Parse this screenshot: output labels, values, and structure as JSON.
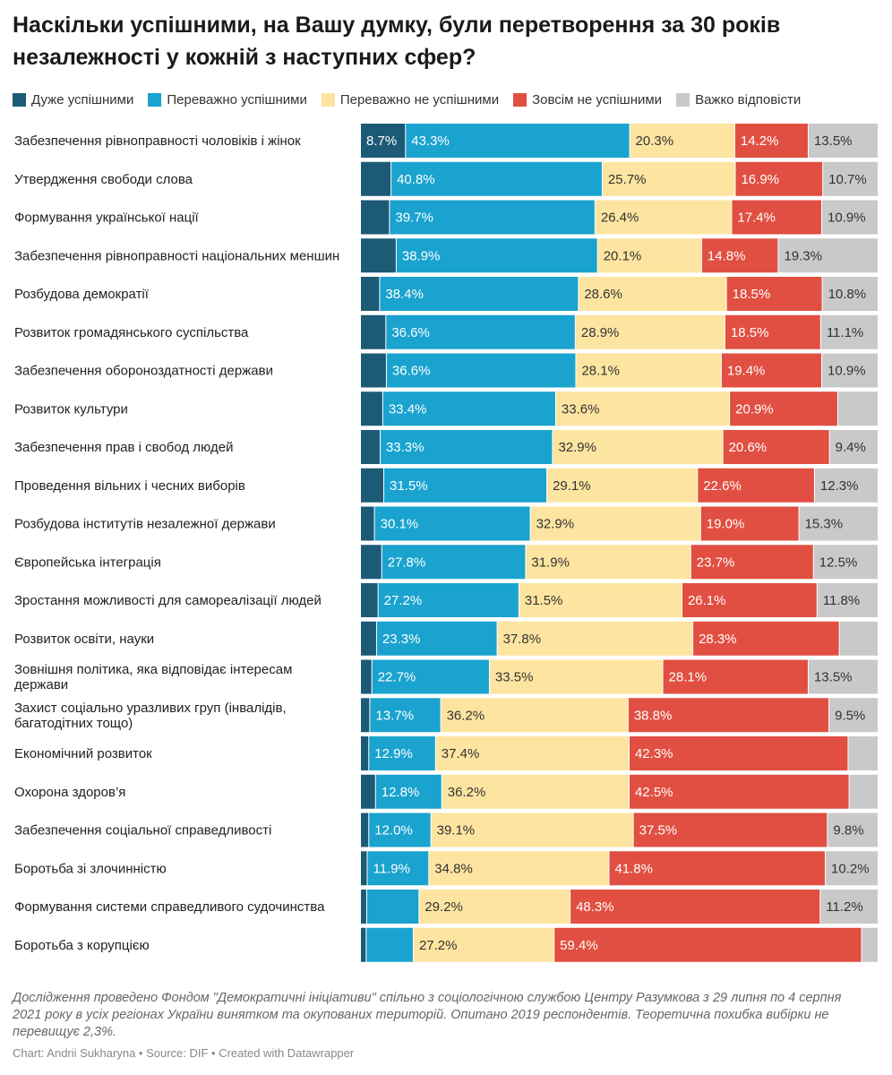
{
  "chart_data": {
    "type": "bar",
    "stacked": true,
    "orientation": "horizontal",
    "title": "Наскільки успішними, на Вашу думку, були перетворення за 30 років  незалежності у кожній з наступних сфер?",
    "xlim": [
      0,
      100
    ],
    "legend_position": "top",
    "series": [
      {
        "name": "Дуже успішними",
        "color": "#1d5a76"
      },
      {
        "name": "Переважно успішними",
        "color": "#1aa3cf"
      },
      {
        "name": "Переважно не успішними",
        "color": "#fde4a0"
      },
      {
        "name": "Зовсім не успішними",
        "color": "#e14f42"
      },
      {
        "name": "Важко відповісти",
        "color": "#c9c9c9"
      }
    ],
    "rows": [
      {
        "label": "Забезпечення рівноправності чоловіків і жінок",
        "values": [
          8.7,
          43.3,
          20.3,
          14.2,
          13.5
        ],
        "labels": [
          "8.7%",
          "43.3%",
          "20.3%",
          "14.2%",
          "13.5%"
        ]
      },
      {
        "label": "Утвердження свободи слова",
        "values": [
          5.9,
          40.8,
          25.7,
          16.9,
          10.7
        ],
        "labels": [
          "",
          "40.8%",
          "25.7%",
          "16.9%",
          "10.7%"
        ]
      },
      {
        "label": "Формування української нації",
        "values": [
          5.6,
          39.7,
          26.4,
          17.4,
          10.9
        ],
        "labels": [
          "",
          "39.7%",
          "26.4%",
          "17.4%",
          "10.9%"
        ]
      },
      {
        "label": "Забезпечення рівноправності національних меншин",
        "values": [
          6.9,
          38.9,
          20.1,
          14.8,
          19.3
        ],
        "labels": [
          "",
          "38.9%",
          "20.1%",
          "14.8%",
          "19.3%"
        ]
      },
      {
        "label": "Розбудова демократії",
        "values": [
          3.7,
          38.4,
          28.6,
          18.5,
          10.8
        ],
        "labels": [
          "",
          "38.4%",
          "28.6%",
          "18.5%",
          "10.8%"
        ]
      },
      {
        "label": "Розвиток громадянського суспільства",
        "values": [
          4.9,
          36.6,
          28.9,
          18.5,
          11.1
        ],
        "labels": [
          "",
          "36.6%",
          "28.9%",
          "18.5%",
          "11.1%"
        ]
      },
      {
        "label": "Забезпечення обороноздатності держави",
        "values": [
          5.0,
          36.6,
          28.1,
          19.4,
          10.9
        ],
        "labels": [
          "",
          "36.6%",
          "28.1%",
          "19.4%",
          "10.9%"
        ]
      },
      {
        "label": "Розвиток культури",
        "values": [
          4.3,
          33.4,
          33.6,
          20.9,
          7.8
        ],
        "labels": [
          "",
          "33.4%",
          "33.6%",
          "20.9%",
          ""
        ]
      },
      {
        "label": "Забезпечення прав і свобод людей",
        "values": [
          3.8,
          33.3,
          32.9,
          20.6,
          9.4
        ],
        "labels": [
          "",
          "33.3%",
          "32.9%",
          "20.6%",
          "9.4%"
        ]
      },
      {
        "label": "Проведення вільних і чесних виборів",
        "values": [
          4.5,
          31.5,
          29.1,
          22.6,
          12.3
        ],
        "labels": [
          "",
          "31.5%",
          "29.1%",
          "22.6%",
          "12.3%"
        ]
      },
      {
        "label": "Розбудова інститутів незалежної держави",
        "values": [
          2.7,
          30.1,
          32.9,
          19.0,
          15.3
        ],
        "labels": [
          "",
          "30.1%",
          "32.9%",
          "19.0%",
          "15.3%"
        ]
      },
      {
        "label": "Європейська інтеграція",
        "values": [
          4.1,
          27.8,
          31.9,
          23.7,
          12.5
        ],
        "labels": [
          "",
          "27.8%",
          "31.9%",
          "23.7%",
          "12.5%"
        ]
      },
      {
        "label": "Зростання можливості для самореалізації людей",
        "values": [
          3.4,
          27.2,
          31.5,
          26.1,
          11.8
        ],
        "labels": [
          "",
          "27.2%",
          "31.5%",
          "26.1%",
          "11.8%"
        ]
      },
      {
        "label": "Розвиток освіти, науки",
        "values": [
          3.1,
          23.3,
          37.8,
          28.3,
          7.5
        ],
        "labels": [
          "",
          "23.3%",
          "37.8%",
          "28.3%",
          ""
        ]
      },
      {
        "label": "Зовнішня політика, яка відповідає інтересам держави",
        "values": [
          2.2,
          22.7,
          33.5,
          28.1,
          13.5
        ],
        "labels": [
          "",
          "22.7%",
          "33.5%",
          "28.1%",
          "13.5%"
        ]
      },
      {
        "label": "Захист соціально уразливих груп (інвалідів, багатодітних тощо)",
        "values": [
          1.8,
          13.7,
          36.2,
          38.8,
          9.5
        ],
        "labels": [
          "",
          "13.7%",
          "36.2%",
          "38.8%",
          "9.5%"
        ]
      },
      {
        "label": "Економічний розвиток",
        "values": [
          1.6,
          12.9,
          37.4,
          42.3,
          5.8
        ],
        "labels": [
          "",
          "12.9%",
          "37.4%",
          "42.3%",
          ""
        ]
      },
      {
        "label": "Охорона здоров’я",
        "values": [
          2.9,
          12.8,
          36.2,
          42.5,
          5.6
        ],
        "labels": [
          "",
          "12.8%",
          "36.2%",
          "42.5%",
          ""
        ]
      },
      {
        "label": "Забезпечення соціальної справедливості",
        "values": [
          1.6,
          12.0,
          39.1,
          37.5,
          9.8
        ],
        "labels": [
          "",
          "12.0%",
          "39.1%",
          "37.5%",
          "9.8%"
        ]
      },
      {
        "label": "Боротьба зі злочинністю",
        "values": [
          1.3,
          11.9,
          34.8,
          41.8,
          10.2
        ],
        "labels": [
          "",
          "11.9%",
          "34.8%",
          "41.8%",
          "10.2%"
        ]
      },
      {
        "label": "Формування системи справедливого судочинства",
        "values": [
          1.2,
          10.1,
          29.2,
          48.3,
          11.2
        ],
        "labels": [
          "",
          "",
          "29.2%",
          "48.3%",
          "11.2%"
        ]
      },
      {
        "label": "Боротьба з корупцією",
        "values": [
          1.1,
          9.1,
          27.2,
          59.4,
          3.2
        ],
        "labels": [
          "",
          "",
          "27.2%",
          "59.4%",
          ""
        ]
      }
    ]
  },
  "note": "Дослідження проведено Фондом \"Демократичні ініціативи\" спільно з соціологічною службою Центру Разумкова з 29 липня по 4 серпня 2021 року в усіх регіонах України винятком та окупованих територій. Опитано 2019 респондентів. Теоретична похибка вибірки не перевищує 2,3%.",
  "credit": "Chart: Andrii Sukharyna • Source: DIF • Created with Datawrapper"
}
